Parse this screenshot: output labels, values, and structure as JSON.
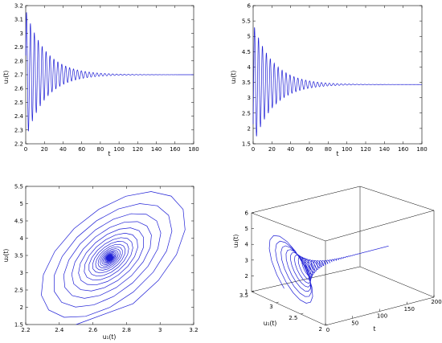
{
  "chart_data": [
    {
      "id": "u1_time",
      "type": "line",
      "xlabel": "t",
      "ylabel": "u₁(t)",
      "xlim": [
        0,
        180
      ],
      "ylim": [
        2.2,
        3.2
      ],
      "xticks": [
        "0",
        "20",
        "40",
        "60",
        "80",
        "100",
        "120",
        "140",
        "160",
        "180"
      ],
      "yticks": [
        "2.2",
        "2.3",
        "2.4",
        "2.5",
        "2.6",
        "2.7",
        "2.8",
        "2.9",
        "3",
        "3.1",
        "3.2"
      ],
      "series": [
        {
          "equilibrium": 2.7,
          "initial_amplitude": 0.47,
          "decay_rate": 0.047,
          "period": 4.2,
          "t_end": 180,
          "peaks_sample": [
            [
              1.5,
              3.16
            ],
            [
              6,
              3.05
            ],
            [
              20,
              2.9
            ],
            [
              40,
              2.8
            ],
            [
              60,
              2.75
            ],
            [
              90,
              2.71
            ]
          ]
        }
      ]
    },
    {
      "id": "u2_time",
      "type": "line",
      "xlabel": "t",
      "ylabel": "u₂(t)",
      "xlim": [
        0,
        180
      ],
      "ylim": [
        1.5,
        6
      ],
      "xticks": [
        "0",
        "20",
        "40",
        "60",
        "80",
        "100",
        "120",
        "140",
        "160",
        "180"
      ],
      "yticks": [
        "1.5",
        "2",
        "2.5",
        "3",
        "3.5",
        "4",
        "4.5",
        "5",
        "5.5",
        "6"
      ],
      "series": [
        {
          "equilibrium": 3.43,
          "initial_amplitude": 2.0,
          "decay_rate": 0.047,
          "period": 4.2,
          "phase_lag": 1.0,
          "t_end": 180,
          "peaks_sample": [
            [
              2,
              5.5
            ],
            [
              6,
              5.1
            ],
            [
              20,
              4.4
            ],
            [
              40,
              3.9
            ],
            [
              60,
              3.65
            ],
            [
              90,
              3.48
            ]
          ]
        }
      ]
    },
    {
      "id": "phase_plane",
      "type": "line",
      "xlabel": "u₁(t)",
      "ylabel": "u₂(t)",
      "xlim": [
        2.2,
        3.2
      ],
      "ylim": [
        1.5,
        5.5
      ],
      "xticks": [
        "2.2",
        "2.4",
        "2.6",
        "2.8",
        "3",
        "3.2"
      ],
      "yticks": [
        "1.5",
        "2",
        "2.5",
        "3",
        "3.5",
        "4",
        "4.5",
        "5",
        "5.5"
      ],
      "series": [
        {
          "center": [
            2.7,
            3.43
          ],
          "description_points": [
            [
              2.5,
              1.55
            ],
            [
              2.27,
              2.5
            ],
            [
              2.9,
              5.5
            ],
            [
              3.18,
              4.7
            ],
            [
              2.7,
              3.43
            ]
          ]
        }
      ]
    },
    {
      "id": "surface_3d",
      "type": "line",
      "xlabel": "t",
      "ylabel": "u₁(t)",
      "zlabel": "u₂(t)",
      "xlim": [
        0,
        200
      ],
      "ylim": [
        2,
        3.5
      ],
      "zlim": [
        1,
        6
      ],
      "xticks": [
        "0",
        "50",
        "100",
        "150",
        "200"
      ],
      "yticks": [
        "2",
        "2.5",
        "3",
        "3.5"
      ],
      "zticks": [
        "1",
        "2",
        "3",
        "4",
        "5",
        "6"
      ]
    }
  ]
}
